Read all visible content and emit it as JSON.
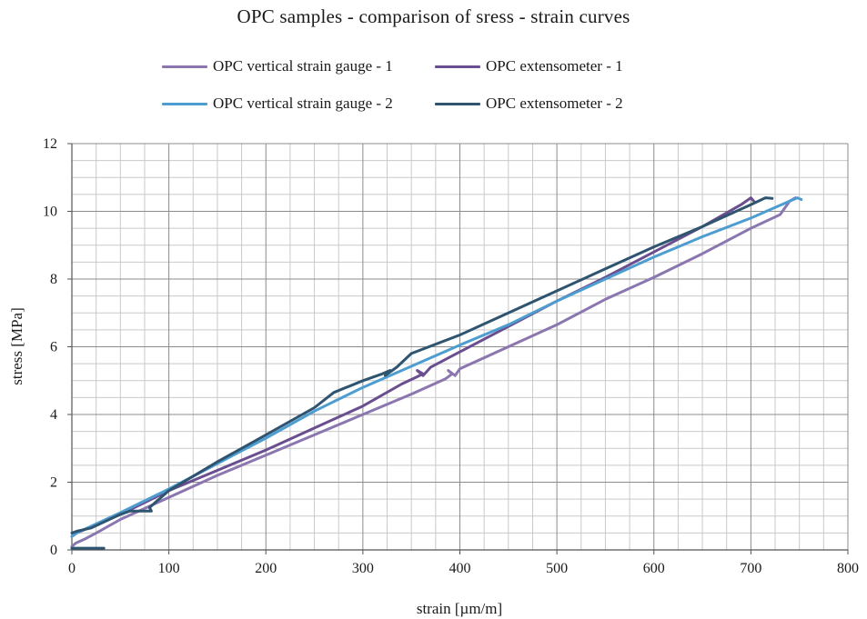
{
  "chart_data": {
    "type": "line",
    "title": "OPC samples - comparison of sress - strain curves",
    "xlabel": "strain [µm/m]",
    "ylabel": "stress [MPa]",
    "xlim": [
      0,
      800
    ],
    "ylim": [
      0,
      12
    ],
    "x_ticks": [
      0,
      100,
      200,
      300,
      400,
      500,
      600,
      700,
      800
    ],
    "y_ticks": [
      0,
      2,
      4,
      6,
      8,
      10,
      12
    ],
    "grid": true,
    "legend_position": "top",
    "series": [
      {
        "name": "OPC vertical strain gauge - 1",
        "color": "#8B76B0",
        "points": [
          [
            0,
            0.1
          ],
          [
            4,
            0.2
          ],
          [
            10,
            0.28
          ],
          [
            14,
            0.33
          ],
          [
            25,
            0.5
          ],
          [
            50,
            0.9
          ],
          [
            100,
            1.55
          ],
          [
            150,
            2.2
          ],
          [
            200,
            2.8
          ],
          [
            250,
            3.4
          ],
          [
            300,
            4.0
          ],
          [
            350,
            4.6
          ],
          [
            385,
            5.05
          ],
          [
            392,
            5.2
          ],
          [
            388,
            5.3
          ],
          [
            395,
            5.15
          ],
          [
            400,
            5.35
          ],
          [
            450,
            6.0
          ],
          [
            500,
            6.65
          ],
          [
            550,
            7.4
          ],
          [
            600,
            8.05
          ],
          [
            650,
            8.75
          ],
          [
            700,
            9.5
          ],
          [
            730,
            9.9
          ],
          [
            740,
            10.3
          ],
          [
            746,
            10.4
          ]
        ]
      },
      {
        "name": "OPC extensometer - 1",
        "color": "#6A4E8F",
        "points": [
          [
            0,
            0.4
          ],
          [
            5,
            0.5
          ],
          [
            25,
            0.75
          ],
          [
            50,
            1.05
          ],
          [
            75,
            1.4
          ],
          [
            100,
            1.75
          ],
          [
            150,
            2.35
          ],
          [
            200,
            2.95
          ],
          [
            250,
            3.6
          ],
          [
            300,
            4.25
          ],
          [
            340,
            4.9
          ],
          [
            355,
            5.1
          ],
          [
            362,
            5.2
          ],
          [
            356,
            5.3
          ],
          [
            362,
            5.15
          ],
          [
            370,
            5.4
          ],
          [
            400,
            5.85
          ],
          [
            450,
            6.6
          ],
          [
            500,
            7.35
          ],
          [
            550,
            8.05
          ],
          [
            600,
            8.8
          ],
          [
            650,
            9.55
          ],
          [
            690,
            10.2
          ],
          [
            700,
            10.4
          ],
          [
            703,
            10.3
          ]
        ]
      },
      {
        "name": "OPC vertical strain gauge - 2",
        "color": "#4E9DD1",
        "points": [
          [
            0,
            0.4
          ],
          [
            5,
            0.5
          ],
          [
            20,
            0.7
          ],
          [
            50,
            1.1
          ],
          [
            100,
            1.8
          ],
          [
            150,
            2.55
          ],
          [
            200,
            3.3
          ],
          [
            250,
            4.1
          ],
          [
            300,
            4.8
          ],
          [
            340,
            5.3
          ],
          [
            360,
            5.55
          ],
          [
            400,
            6.05
          ],
          [
            450,
            6.65
          ],
          [
            500,
            7.35
          ],
          [
            550,
            8.0
          ],
          [
            600,
            8.65
          ],
          [
            650,
            9.25
          ],
          [
            700,
            9.8
          ],
          [
            740,
            10.3
          ],
          [
            748,
            10.4
          ],
          [
            752,
            10.35
          ]
        ]
      },
      {
        "name": "OPC extensometer - 2",
        "color": "#2E5470",
        "points": [
          [
            0,
            0.5
          ],
          [
            5,
            0.55
          ],
          [
            20,
            0.65
          ],
          [
            50,
            1.05
          ],
          [
            60,
            1.15
          ],
          [
            75,
            1.15
          ],
          [
            82,
            1.15
          ],
          [
            80,
            1.25
          ],
          [
            100,
            1.75
          ],
          [
            150,
            2.6
          ],
          [
            200,
            3.4
          ],
          [
            250,
            4.2
          ],
          [
            270,
            4.65
          ],
          [
            300,
            5.0
          ],
          [
            320,
            5.2
          ],
          [
            328,
            5.3
          ],
          [
            323,
            5.15
          ],
          [
            335,
            5.4
          ],
          [
            350,
            5.8
          ],
          [
            400,
            6.35
          ],
          [
            450,
            7.0
          ],
          [
            500,
            7.65
          ],
          [
            550,
            8.3
          ],
          [
            600,
            8.95
          ],
          [
            650,
            9.55
          ],
          [
            700,
            10.2
          ],
          [
            715,
            10.4
          ],
          [
            722,
            10.38
          ]
        ]
      },
      {
        "name": "",
        "color": "#2E5470",
        "points": [
          [
            0,
            0.05
          ],
          [
            33,
            0.05
          ]
        ]
      }
    ]
  }
}
